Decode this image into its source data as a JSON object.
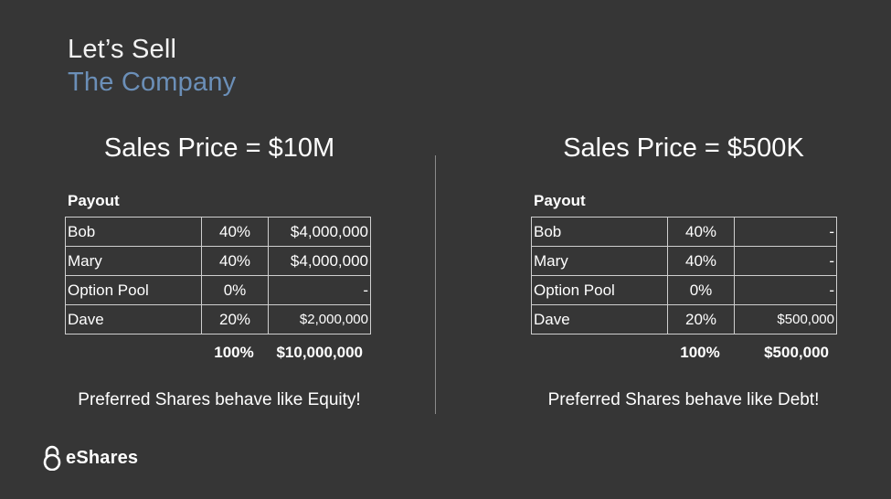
{
  "slide": {
    "title_line1": "Let’s Sell",
    "title_line2": "The Company",
    "title_accent_color": "#6b8fb8",
    "background_color": "#363636"
  },
  "left": {
    "sales_price": "Sales Price = $10M",
    "payout_label": "Payout",
    "rows": [
      {
        "name": "Bob",
        "pct": "40%",
        "amount": "$4,000,000"
      },
      {
        "name": "Mary",
        "pct": "40%",
        "amount": "$4,000,000"
      },
      {
        "name": "Option Pool",
        "pct": "0%",
        "amount": "-"
      },
      {
        "name": "Dave",
        "pct": "20%",
        "amount": "$2,000,000"
      }
    ],
    "total_pct": "100%",
    "total_amount": "$10,000,000",
    "caption": "Preferred Shares behave like Equity!"
  },
  "right": {
    "sales_price": "Sales Price = $500K",
    "payout_label": "Payout",
    "rows": [
      {
        "name": "Bob",
        "pct": "40%",
        "amount": "-"
      },
      {
        "name": "Mary",
        "pct": "40%",
        "amount": "-"
      },
      {
        "name": "Option Pool",
        "pct": "0%",
        "amount": "-"
      },
      {
        "name": "Dave",
        "pct": "20%",
        "amount": "$500,000"
      }
    ],
    "total_pct": "100%",
    "total_amount": "$500,000",
    "caption": "Preferred Shares behave like Debt!"
  },
  "logo": {
    "text": "eShares",
    "icon": "lock-icon"
  }
}
